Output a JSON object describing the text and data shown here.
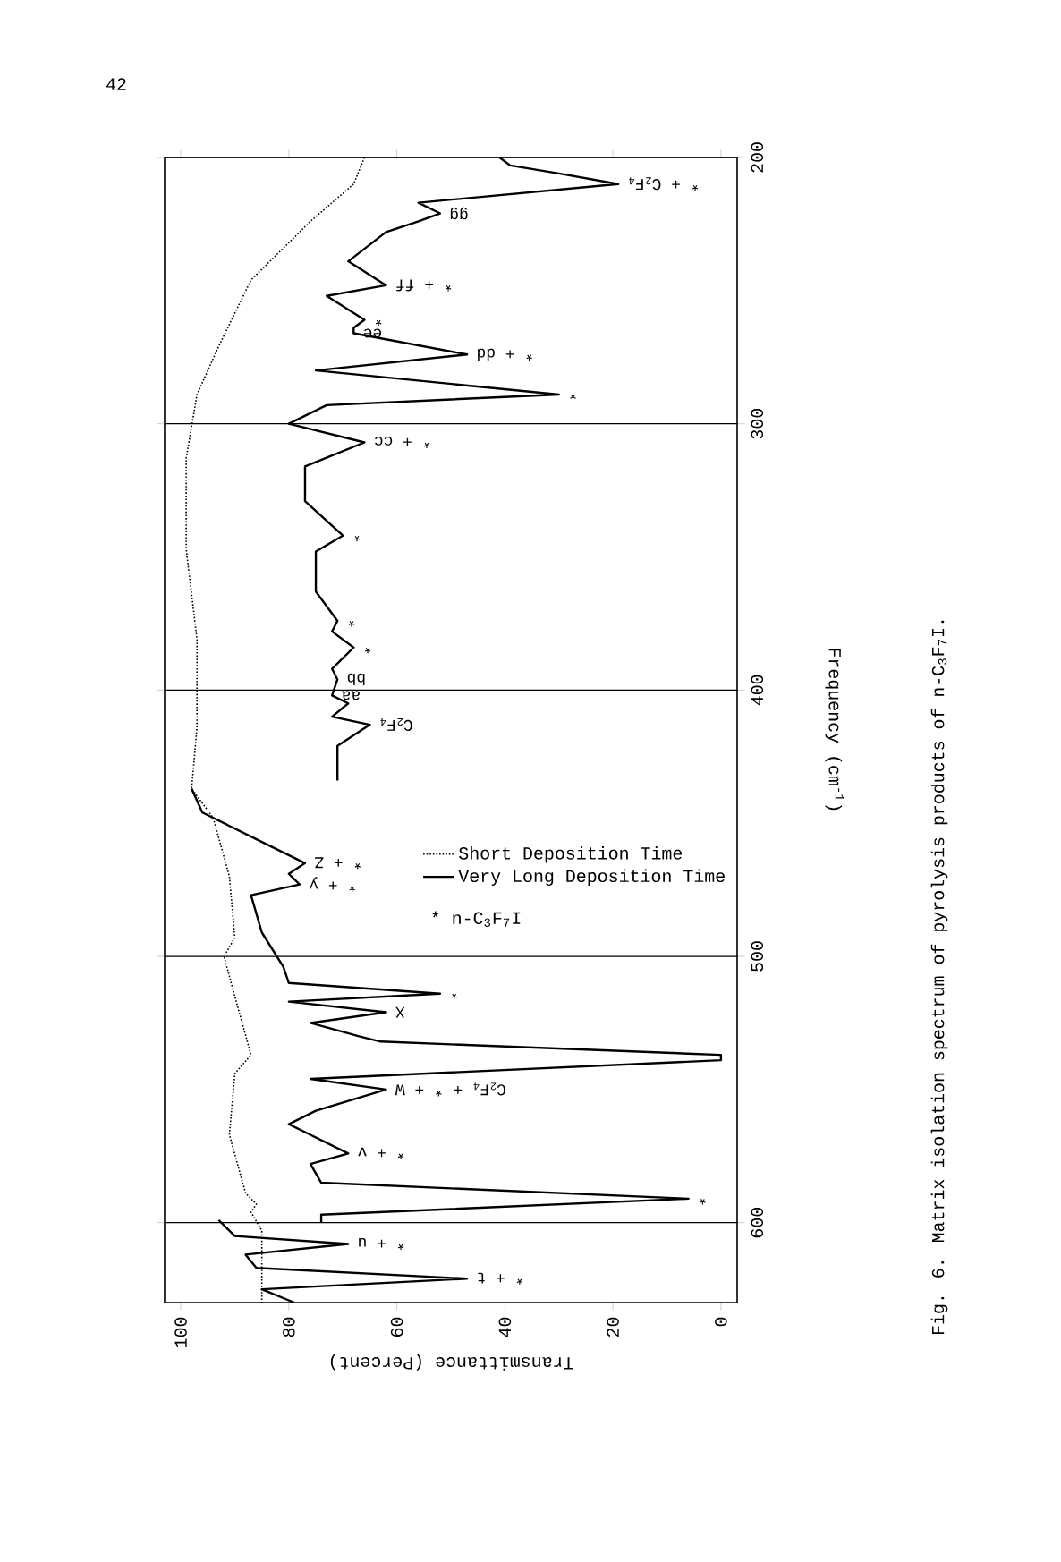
{
  "chart_data": {
    "type": "line",
    "xlabel": "Transmittance (Percent)",
    "ylabel": "Frequency (cm$^{-1}$)",
    "xlim": [
      103,
      -3
    ],
    "xticks": [
      0,
      20,
      40,
      60,
      80,
      100
    ],
    "ylim": [
      630,
      200
    ],
    "yticks": [
      200,
      300,
      400,
      500,
      600
    ],
    "grid": "y",
    "legend": "center",
    "marker": "none",
    "series": [
      {
        "name": "Short Deposition Time",
        "color": "#000000",
        "line_style": "dotted",
        "x": [
          66,
          68,
          76,
          87,
          93,
          97,
          99,
          99,
          97,
          97,
          98,
          94,
          91,
          90,
          92,
          90,
          87,
          90,
          91,
          88,
          86,
          87,
          85,
          85
        ],
        "values": [
          200,
          210,
          224,
          246,
          271,
          289,
          313,
          347,
          381,
          414,
          437,
          448,
          470,
          493,
          500,
          515,
          537,
          544,
          567,
          589,
          593,
          596,
          603,
          630
        ]
      },
      {
        "name": "Very Long Deposition Time",
        "color": "#000000",
        "line_style": "solid",
        "x": [
          41,
          39,
          30,
          19,
          56,
          52,
          56,
          62,
          69,
          62,
          73,
          66,
          68,
          68,
          47,
          75,
          30,
          73,
          80,
          66,
          77,
          77,
          70,
          75,
          75,
          71,
          72,
          68,
          72,
          71,
          72,
          69,
          72,
          65,
          71,
          71,
          null,
          98,
          96,
          87,
          77,
          80,
          78,
          87,
          85,
          81,
          80,
          52,
          80,
          62,
          76,
          67,
          63,
          0,
          0,
          76,
          62,
          75,
          80,
          76,
          69,
          76,
          74,
          6,
          74,
          74,
          null,
          93,
          90,
          69,
          88,
          86,
          47,
          85,
          79
        ],
        "values": [
          200,
          203,
          206,
          210,
          217,
          221,
          224,
          228,
          239,
          248,
          252,
          261,
          264,
          266,
          274,
          280,
          289,
          293,
          300,
          307,
          316,
          329,
          342,
          348,
          363,
          374,
          378,
          384,
          392,
          396,
          402,
          405,
          410,
          413,
          421,
          434,
          null,
          437,
          446,
          455,
          465,
          469,
          473,
          477,
          491,
          504,
          510,
          514,
          517,
          521,
          525,
          530,
          532,
          537,
          539,
          546,
          550,
          558,
          563,
          567,
          574,
          578,
          585,
          591,
          597,
          600,
          null,
          599,
          605,
          608,
          612,
          617,
          621,
          625,
          630
        ]
      }
    ],
    "annotations": [
      "42",
      "* n-C$_{3}$F$_{7}$I",
      "Fig. 6. Matrix isolation spectrum of pyrolysis products of n-C$_{3}$F$_{7}$I.",
      {
        "text": "* + C$_{2}$F$_{4}$",
        "x": 19,
        "y": 210
      },
      {
        "text": "gg",
        "x": 52,
        "y": 221
      },
      {
        "text": "* + ff",
        "x": 62,
        "y": 248
      },
      {
        "text": "*",
        "x": 66,
        "y": 261
      },
      {
        "text": "ee",
        "x": 68,
        "y": 266
      },
      {
        "text": "* + dd",
        "x": 47,
        "y": 274
      },
      {
        "text": "*",
        "x": 30,
        "y": 289
      },
      {
        "text": "* + cc",
        "x": 66,
        "y": 307
      },
      {
        "text": "*",
        "x": 70,
        "y": 342
      },
      {
        "text": "*",
        "x": 71,
        "y": 374
      },
      {
        "text": "*",
        "x": 68,
        "y": 384
      },
      {
        "text": "bb",
        "x": 71,
        "y": 396
      },
      {
        "text": "aa",
        "x": 72,
        "y": 402
      },
      {
        "text": "C$_{2}$F$_{4}$",
        "x": 65,
        "y": 413
      },
      {
        "text": "* + Z",
        "x": 77,
        "y": 465
      },
      {
        "text": "* + y",
        "x": 78,
        "y": 473
      },
      {
        "text": "*",
        "x": 52,
        "y": 514
      },
      {
        "text": "X",
        "x": 62,
        "y": 521
      },
      {
        "text": "C$_{2}$F$_{4}$ + * + W",
        "x": 62,
        "y": 550
      },
      {
        "text": "* + v",
        "x": 69,
        "y": 574
      },
      {
        "text": "*",
        "x": 6,
        "y": 591
      },
      {
        "text": "* + u",
        "x": 69,
        "y": 608
      },
      {
        "text": "* + t",
        "x": 47,
        "y": 621
      }
    ]
  }
}
